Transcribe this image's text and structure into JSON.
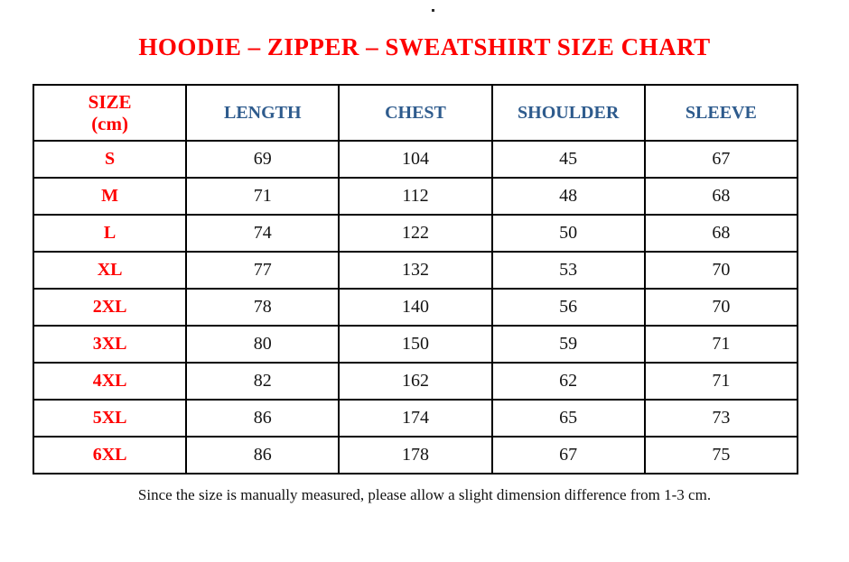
{
  "header": {
    "size_line1": "SIZE",
    "size_line2": "(cm)"
  },
  "colors": {
    "title_red": "#fe0000",
    "header_blue": "#2e5b8d",
    "value_black": "#141414",
    "border_black": "#000000"
  },
  "chart_data": {
    "type": "table",
    "title": "HOODIE – ZIPPER – SWEATSHIRT SIZE CHART",
    "columns": [
      "SIZE (cm)",
      "LENGTH",
      "CHEST",
      "SHOULDER",
      "SLEEVE"
    ],
    "rows": [
      [
        "S",
        69,
        104,
        45,
        67
      ],
      [
        "M",
        71,
        112,
        48,
        68
      ],
      [
        "L",
        74,
        122,
        50,
        68
      ],
      [
        "XL",
        77,
        132,
        53,
        70
      ],
      [
        "2XL",
        78,
        140,
        56,
        70
      ],
      [
        "3XL",
        80,
        150,
        59,
        71
      ],
      [
        "4XL",
        82,
        162,
        62,
        71
      ],
      [
        "5XL",
        86,
        174,
        65,
        73
      ],
      [
        "6XL",
        86,
        178,
        67,
        75
      ]
    ],
    "note": "Since the size is manually measured, please allow a slight dimension difference from 1-3 cm."
  }
}
